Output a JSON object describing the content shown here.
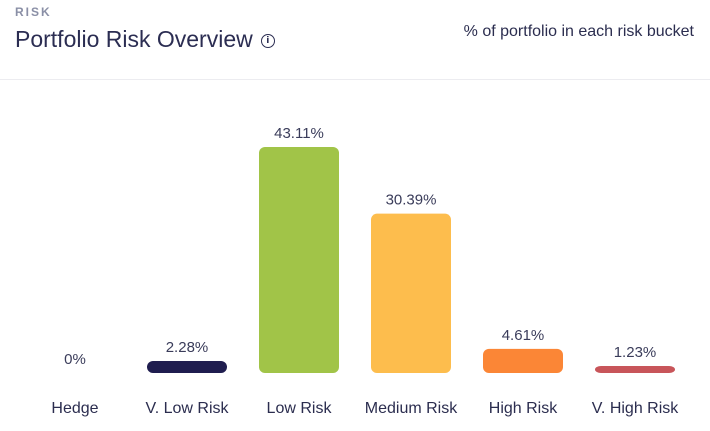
{
  "header": {
    "eyebrow": "RISK",
    "title": "Portfolio Risk Overview",
    "info_icon": "info-circle-icon",
    "subtitle": "% of portfolio in each risk bucket"
  },
  "chart_data": {
    "type": "bar",
    "categories": [
      "Hedge",
      "V. Low Risk",
      "Low Risk",
      "Medium Risk",
      "High Risk",
      "V. High Risk"
    ],
    "values": [
      0,
      2.28,
      43.11,
      30.39,
      4.61,
      1.23
    ],
    "data_labels": [
      "0%",
      "2.28%",
      "43.11%",
      "30.39%",
      "4.61%",
      "1.23%"
    ],
    "colors": [
      "#cfd0d8",
      "#1f1d4f",
      "#a1c448",
      "#fdbd4d",
      "#fb8636",
      "#c8555a"
    ],
    "title": "",
    "xlabel": "",
    "ylabel": "",
    "ylim": [
      0,
      43.11
    ],
    "grid": false,
    "legend": "none"
  }
}
